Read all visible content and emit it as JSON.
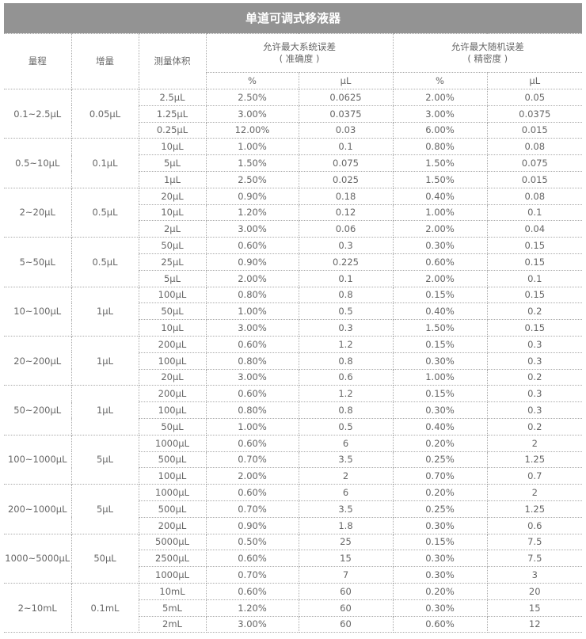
{
  "title": "单道可调式移液器",
  "headers": {
    "range": "量程",
    "increment": "增量",
    "volume": "测量体积",
    "systematic": "允许最大系统误差",
    "systematic_sub": "( 准确度 )",
    "random": "允许最大随机误差",
    "random_sub": "( 精密度 )",
    "pct": "%",
    "ul": "μL"
  },
  "groups": [
    {
      "range": "0.1~2.5μL",
      "inc": "0.05μL",
      "rows": [
        [
          "2.5μL",
          "2.50%",
          "0.0625",
          "2.00%",
          "0.05"
        ],
        [
          "1.25μL",
          "3.00%",
          "0.0375",
          "3.00%",
          "0.0375"
        ],
        [
          "0.25μL",
          "12.00%",
          "0.03",
          "6.00%",
          "0.015"
        ]
      ]
    },
    {
      "range": "0.5~10μL",
      "inc": "0.1μL",
      "rows": [
        [
          "10μL",
          "1.00%",
          "0.1",
          "0.80%",
          "0.08"
        ],
        [
          "5μL",
          "1.50%",
          "0.075",
          "1.50%",
          "0.075"
        ],
        [
          "1μL",
          "2.50%",
          "0.025",
          "1.50%",
          "0.015"
        ]
      ]
    },
    {
      "range": "2~20μL",
      "inc": "0.5μL",
      "rows": [
        [
          "20μL",
          "0.90%",
          "0.18",
          "0.40%",
          "0.08"
        ],
        [
          "10μL",
          "1.20%",
          "0.12",
          "1.00%",
          "0.1"
        ],
        [
          "2μL",
          "3.00%",
          "0.06",
          "2.00%",
          "0.04"
        ]
      ]
    },
    {
      "range": "5~50μL",
      "inc": "0.5μL",
      "rows": [
        [
          "50μL",
          "0.60%",
          "0.3",
          "0.30%",
          "0.15"
        ],
        [
          "25μL",
          "0.90%",
          "0.225",
          "0.60%",
          "0.15"
        ],
        [
          "5μL",
          "2.00%",
          "0.1",
          "2.00%",
          "0.1"
        ]
      ]
    },
    {
      "range": "10~100μL",
      "inc": "1μL",
      "rows": [
        [
          "100μL",
          "0.80%",
          "0.8",
          "0.15%",
          "0.15"
        ],
        [
          "50μL",
          "1.00%",
          "0.5",
          "0.40%",
          "0.2"
        ],
        [
          "10μL",
          "3.00%",
          "0.3",
          "1.50%",
          "0.15"
        ]
      ]
    },
    {
      "range": "20~200μL",
      "inc": "1μL",
      "rows": [
        [
          "200μL",
          "0.60%",
          "1.2",
          "0.15%",
          "0.3"
        ],
        [
          "100μL",
          "0.80%",
          "0.8",
          "0.30%",
          "0.3"
        ],
        [
          "20μL",
          "3.00%",
          "0.6",
          "1.00%",
          "0.2"
        ]
      ]
    },
    {
      "range": "50~200μL",
      "inc": "1μL",
      "rows": [
        [
          "200μL",
          "0.60%",
          "1.2",
          "0.15%",
          "0.3"
        ],
        [
          "100μL",
          "0.80%",
          "0.8",
          "0.30%",
          "0.3"
        ],
        [
          "50μL",
          "1.00%",
          "0.5",
          "0.40%",
          "0.2"
        ]
      ]
    },
    {
      "range": "100~1000μL",
      "inc": "5μL",
      "rows": [
        [
          "1000μL",
          "0.60%",
          "6",
          "0.20%",
          "2"
        ],
        [
          "500μL",
          "0.70%",
          "3.5",
          "0.25%",
          "1.25"
        ],
        [
          "100μL",
          "2.00%",
          "2",
          "0.70%",
          "0.7"
        ]
      ]
    },
    {
      "range": "200~1000μL",
      "inc": "5μL",
      "rows": [
        [
          "1000μL",
          "0.60%",
          "6",
          "0.20%",
          "2"
        ],
        [
          "500μL",
          "0.70%",
          "3.5",
          "0.25%",
          "1.25"
        ],
        [
          "200μL",
          "0.90%",
          "1.8",
          "0.30%",
          "0.6"
        ]
      ]
    },
    {
      "range": "1000~5000μL",
      "inc": "50μL",
      "rows": [
        [
          "5000μL",
          "0.50%",
          "25",
          "0.15%",
          "7.5"
        ],
        [
          "2500μL",
          "0.60%",
          "15",
          "0.30%",
          "7.5"
        ],
        [
          "1000μL",
          "0.70%",
          "7",
          "0.30%",
          "3"
        ]
      ]
    },
    {
      "range": "2~10mL",
      "inc": "0.1mL",
      "rows": [
        [
          "10mL",
          "0.60%",
          "60",
          "0.20%",
          "20"
        ],
        [
          "5mL",
          "1.20%",
          "60",
          "0.30%",
          "15"
        ],
        [
          "2mL",
          "3.00%",
          "60",
          "0.60%",
          "12"
        ]
      ]
    }
  ]
}
